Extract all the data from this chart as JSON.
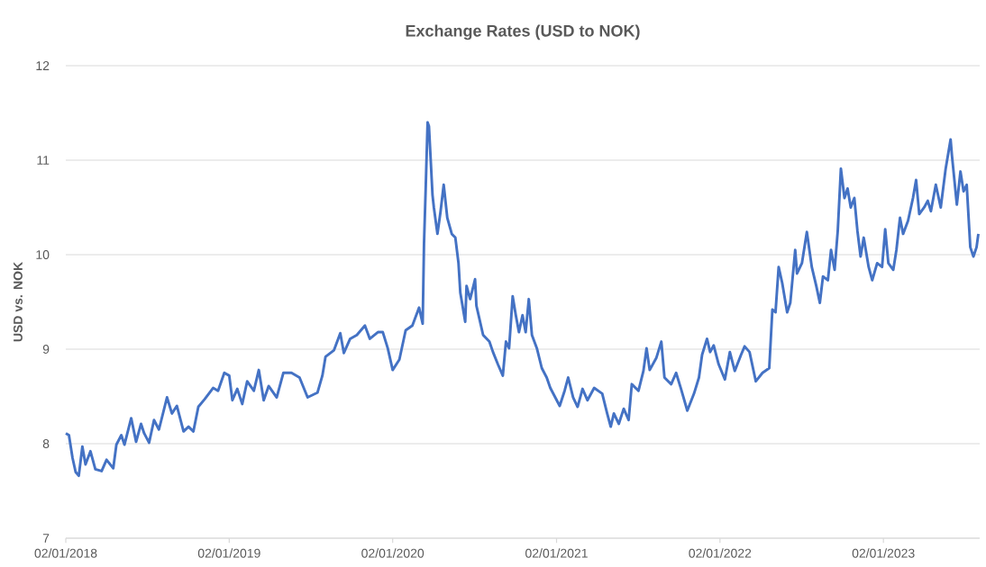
{
  "chart_data": {
    "type": "line",
    "title": "Exchange Rates (USD to NOK)",
    "ylabel": "USD vs. NOK",
    "xlim": [
      "2018-01-02",
      "2023-08-05"
    ],
    "xticks": [
      {
        "value": "2018-01-02",
        "label": "02/01/2018"
      },
      {
        "value": "2019-01-02",
        "label": "02/01/2019"
      },
      {
        "value": "2020-01-02",
        "label": "02/01/2020"
      },
      {
        "value": "2021-01-02",
        "label": "02/01/2021"
      },
      {
        "value": "2022-01-02",
        "label": "02/01/2022"
      },
      {
        "value": "2023-01-02",
        "label": "02/01/2023"
      }
    ],
    "ylim": [
      7,
      12
    ],
    "yticks": [
      7,
      8,
      9,
      10,
      11,
      12
    ],
    "grid": "y",
    "marker": "none",
    "line_style": "solid",
    "series": [
      {
        "color": "#4472c4",
        "x": [
          "2018-01-02",
          "2018-01-09",
          "2018-01-17",
          "2018-01-24",
          "2018-01-31",
          "2018-02-08",
          "2018-02-15",
          "2018-02-26",
          "2018-03-09",
          "2018-03-23",
          "2018-04-03",
          "2018-04-18",
          "2018-04-25",
          "2018-05-06",
          "2018-05-13",
          "2018-05-28",
          "2018-06-08",
          "2018-06-19",
          "2018-06-26",
          "2018-07-07",
          "2018-07-18",
          "2018-07-29",
          "2018-08-16",
          "2018-08-27",
          "2018-09-07",
          "2018-09-22",
          "2018-10-03",
          "2018-10-14",
          "2018-10-25",
          "2018-11-08",
          "2018-11-27",
          "2018-12-08",
          "2018-12-22",
          "2019-01-02",
          "2019-01-09",
          "2019-01-20",
          "2019-01-31",
          "2019-02-11",
          "2019-02-26",
          "2019-03-09",
          "2019-03-20",
          "2019-03-31",
          "2019-04-18",
          "2019-05-03",
          "2019-05-21",
          "2019-06-08",
          "2019-06-26",
          "2019-07-18",
          "2019-07-29",
          "2019-08-05",
          "2019-08-24",
          "2019-09-07",
          "2019-09-15",
          "2019-09-29",
          "2019-10-14",
          "2019-11-01",
          "2019-11-12",
          "2019-11-30",
          "2019-12-11",
          "2019-12-22",
          "2020-01-02",
          "2020-01-17",
          "2020-01-31",
          "2020-02-15",
          "2020-03-01",
          "2020-03-09",
          "2020-03-12",
          "2020-03-16",
          "2020-03-20",
          "2020-03-23",
          "2020-03-31",
          "2020-04-03",
          "2020-04-11",
          "2020-04-18",
          "2020-04-25",
          "2020-05-03",
          "2020-05-13",
          "2020-05-21",
          "2020-05-28",
          "2020-06-01",
          "2020-06-12",
          "2020-06-15",
          "2020-06-23",
          "2020-07-04",
          "2020-07-07",
          "2020-07-22",
          "2020-08-05",
          "2020-08-13",
          "2020-08-24",
          "2020-09-04",
          "2020-09-11",
          "2020-09-18",
          "2020-09-26",
          "2020-10-03",
          "2020-10-10",
          "2020-10-18",
          "2020-10-25",
          "2020-11-01",
          "2020-11-08",
          "2020-11-19",
          "2020-11-30",
          "2020-12-11",
          "2020-12-19",
          "2020-12-30",
          "2021-01-09",
          "2021-01-20",
          "2021-01-28",
          "2021-02-08",
          "2021-02-18",
          "2021-03-01",
          "2021-03-12",
          "2021-03-27",
          "2021-04-14",
          "2021-04-25",
          "2021-05-03",
          "2021-05-10",
          "2021-05-21",
          "2021-06-01",
          "2021-06-12",
          "2021-06-19",
          "2021-07-04",
          "2021-07-15",
          "2021-07-22",
          "2021-07-29",
          "2021-08-13",
          "2021-08-24",
          "2021-08-31",
          "2021-09-15",
          "2021-09-26",
          "2021-10-07",
          "2021-10-21",
          "2021-11-05",
          "2021-11-16",
          "2021-11-23",
          "2021-12-04",
          "2021-12-11",
          "2021-12-19",
          "2021-12-30",
          "2022-01-13",
          "2022-01-24",
          "2022-02-04",
          "2022-02-18",
          "2022-02-26",
          "2022-03-09",
          "2022-03-23",
          "2022-04-07",
          "2022-04-22",
          "2022-04-29",
          "2022-05-06",
          "2022-05-13",
          "2022-05-21",
          "2022-06-01",
          "2022-06-08",
          "2022-06-19",
          "2022-06-23",
          "2022-07-04",
          "2022-07-15",
          "2022-07-26",
          "2022-08-05",
          "2022-08-13",
          "2022-08-20",
          "2022-08-31",
          "2022-09-07",
          "2022-09-15",
          "2022-09-22",
          "2022-09-29",
          "2022-10-07",
          "2022-10-14",
          "2022-10-21",
          "2022-10-29",
          "2022-11-05",
          "2022-11-12",
          "2022-11-19",
          "2022-11-30",
          "2022-12-08",
          "2022-12-19",
          "2022-12-30",
          "2023-01-06",
          "2023-01-13",
          "2023-01-24",
          "2023-01-31",
          "2023-02-08",
          "2023-02-15",
          "2023-02-26",
          "2023-03-09",
          "2023-03-16",
          "2023-03-23",
          "2023-04-03",
          "2023-04-11",
          "2023-04-18",
          "2023-04-29",
          "2023-05-10",
          "2023-05-21",
          "2023-06-01",
          "2023-06-04",
          "2023-06-15",
          "2023-06-23",
          "2023-06-30",
          "2023-07-07",
          "2023-07-15",
          "2023-07-22",
          "2023-07-29",
          "2023-08-02"
        ],
        "values": [
          8.11,
          8.09,
          7.85,
          7.7,
          7.66,
          7.97,
          7.78,
          7.92,
          7.73,
          7.71,
          7.83,
          7.74,
          7.99,
          8.09,
          7.99,
          8.27,
          8.02,
          8.21,
          8.11,
          8.01,
          8.25,
          8.15,
          8.49,
          8.32,
          8.4,
          8.13,
          8.18,
          8.13,
          8.39,
          8.47,
          8.59,
          8.56,
          8.75,
          8.72,
          8.46,
          8.58,
          8.42,
          8.66,
          8.56,
          8.78,
          8.46,
          8.61,
          8.49,
          8.75,
          8.75,
          8.7,
          8.49,
          8.54,
          8.72,
          8.92,
          8.99,
          9.17,
          8.96,
          9.11,
          9.15,
          9.25,
          9.11,
          9.18,
          9.18,
          9.01,
          8.78,
          8.89,
          9.2,
          9.25,
          9.44,
          9.27,
          10.12,
          10.74,
          11.4,
          11.36,
          10.63,
          10.5,
          10.22,
          10.46,
          10.74,
          10.39,
          10.22,
          10.18,
          9.91,
          9.6,
          9.29,
          9.67,
          9.53,
          9.74,
          9.46,
          9.15,
          9.08,
          8.97,
          8.84,
          8.72,
          9.08,
          9.01,
          9.56,
          9.36,
          9.18,
          9.36,
          9.18,
          9.53,
          9.15,
          9.01,
          8.8,
          8.7,
          8.59,
          8.49,
          8.4,
          8.56,
          8.7,
          8.49,
          8.39,
          8.58,
          8.46,
          8.59,
          8.53,
          8.32,
          8.18,
          8.32,
          8.21,
          8.37,
          8.25,
          8.63,
          8.56,
          8.77,
          9.01,
          8.78,
          8.91,
          9.08,
          8.7,
          8.63,
          8.75,
          8.58,
          8.35,
          8.53,
          8.7,
          8.94,
          9.11,
          8.97,
          9.04,
          8.84,
          8.68,
          8.97,
          8.77,
          8.94,
          9.03,
          8.97,
          8.66,
          8.75,
          8.8,
          9.42,
          9.39,
          9.87,
          9.7,
          9.39,
          9.49,
          10.05,
          9.8,
          9.91,
          10.24,
          9.87,
          9.67,
          9.49,
          9.77,
          9.73,
          10.05,
          9.84,
          10.25,
          10.91,
          10.6,
          10.7,
          10.5,
          10.6,
          10.25,
          9.98,
          10.18,
          9.87,
          9.73,
          9.91,
          9.87,
          10.27,
          9.91,
          9.84,
          10.05,
          10.39,
          10.22,
          10.36,
          10.6,
          10.79,
          10.43,
          10.5,
          10.57,
          10.46,
          10.74,
          10.5,
          10.91,
          11.22,
          11.05,
          10.53,
          10.88,
          10.67,
          10.74,
          10.08,
          9.98,
          10.08,
          10.22
        ]
      }
    ]
  }
}
